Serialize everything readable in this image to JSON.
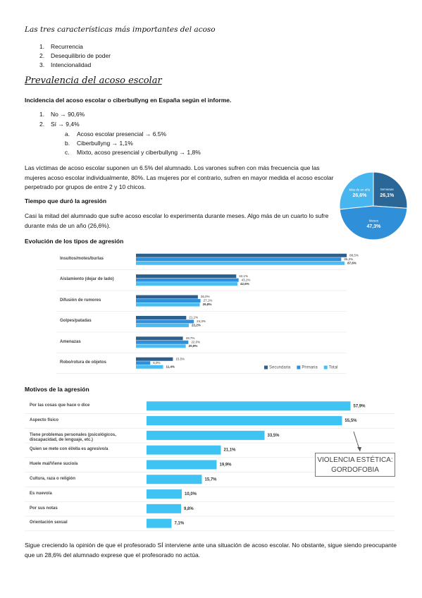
{
  "document": {
    "title": "Las tres características más importantes del acoso",
    "features": [
      "Recurrencia",
      "Desequilibrio de poder",
      "Intencionalidad"
    ],
    "section_title": "Prevalencia del acoso escolar",
    "incidence_title": "Incidencia del acoso escolar o ciberbullyng en España según el informe.",
    "incidence": [
      "No → 90,6%",
      "Sí → 9,4%"
    ],
    "incidence_yes_breakdown": [
      "Acoso escolar presencial → 6.5%",
      "Ciberbullyng → 1,1%",
      "Mixto, acoso presencial y ciberbullyng → 1,8%"
    ],
    "victims_paragraph": "Las víctimas de acoso escolar suponen un 6.5% del alumnado. Los varones sufren con más frecuencia que las mujeres acoso escolar individualmente, 80%. Las mujeres por el contrario, sufren en mayor medida el acoso escolar perpetrado por grupos de entre 2 y 10 chicos.",
    "duration_title": "Tiempo que duró la agresión",
    "duration_paragraph": "Casi la mitad del alumnado que sufre acoso escolar lo experimenta durante meses. Algo más de un cuarto lo sufre durante más de un año (26,6%).",
    "callout": [
      "VIOLENCIA ESTÉTICA:",
      "GORDOFOBIA"
    ],
    "closing_paragraph": "Sigue creciendo la opinión de que el profesorado SÍ interviene ante una situación de acoso escolar. No obstante, sigue siendo preocupante que un 28,6% del alumnado exprese que el profesorado no actúa."
  },
  "chart_data": [
    {
      "type": "pie",
      "categories": [
        "Más de un año",
        "Semanas",
        "Meses"
      ],
      "values": [
        26.6,
        26.1,
        47.3
      ],
      "value_labels": [
        "26,6%",
        "26,1%",
        "47,3%"
      ],
      "colors": [
        "#47b6ee",
        "#2a6796",
        "#2f8fd8"
      ]
    },
    {
      "type": "bar",
      "orientation": "horizontal",
      "title": "Evolución de los tipos de agresión",
      "categories": [
        "Insultos/motes/burlas",
        "Aislamiento (dejar de lado)",
        "Difusión de rumores",
        "Golpes/patadas",
        "Amenazas",
        "Robo/rotura de objetos"
      ],
      "series": [
        {
          "name": "Secundaria",
          "color": "#2d5f8c",
          "values": [
            88.5,
            42.1,
            26.0,
            21.1,
            19.7,
            15.5
          ],
          "value_labels": [
            "88,5%",
            "42,1%",
            "26,0%",
            "21,1%",
            "19,7%",
            "15,5%"
          ]
        },
        {
          "name": "Primaria",
          "color": "#2e8fdc",
          "values": [
            86.2,
            43.1,
            27.1,
            24.3,
            22.0,
            6.0
          ],
          "value_labels": [
            "86,2%",
            "43,1%",
            "27,1%",
            "24,3%",
            "22,0%",
            "6,0%"
          ]
        },
        {
          "name": "Total",
          "color": "#49bdf2",
          "values": [
            87.6,
            42.6,
            26.8,
            22.2,
            20.9,
            11.4
          ],
          "value_labels": [
            "87,6%",
            "42,6%",
            "26,8%",
            "22,2%",
            "20,9%",
            "11,4%"
          ]
        }
      ],
      "legend": "bottom-right"
    },
    {
      "type": "bar",
      "orientation": "horizontal",
      "title": "Motivos de la agresión",
      "categories": [
        "Por las cosas que hace o dice",
        "Aspecto físico",
        "Tiene problemas personales (psicológicos, discapacidad, de lenguaje, etc.)",
        "Quien se mete con él/ella es agresivo/a",
        "Huele mal/Viene sucio/a",
        "Cultura, raza o religión",
        "Es nuevo/a",
        "Por sus notas",
        "Orientación sexual"
      ],
      "values": [
        57.9,
        55.5,
        33.5,
        21.1,
        19.9,
        15.7,
        10.0,
        9.8,
        7.1
      ],
      "value_labels": [
        "57,9%",
        "55,5%",
        "33,5%",
        "21,1%",
        "19,9%",
        "15,7%",
        "10,0%",
        "9,8%",
        "7,1%"
      ],
      "color": "#3ec3f3"
    }
  ]
}
